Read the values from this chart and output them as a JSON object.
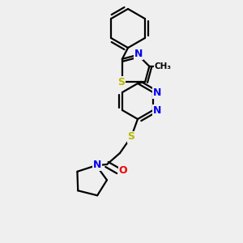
{
  "background_color": "#efefef",
  "bond_color": "#000000",
  "bond_width": 1.6,
  "atom_colors": {
    "S": "#b8b800",
    "N": "#0000ee",
    "O": "#ee0000",
    "C": "#000000"
  },
  "font_size": 9
}
